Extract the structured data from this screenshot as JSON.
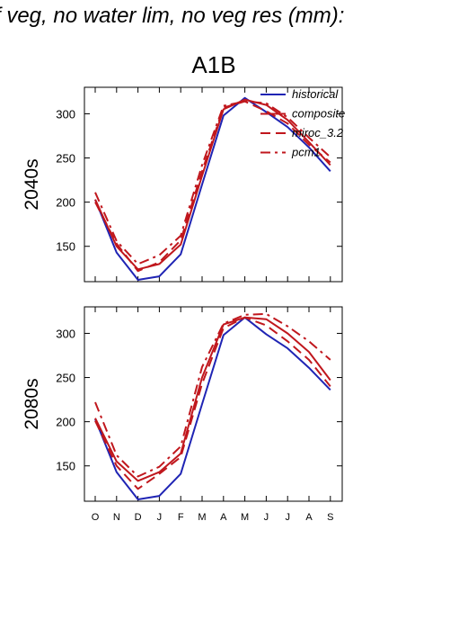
{
  "page_title": "f veg, no water lim, no veg res (mm):",
  "colors": {
    "historical": "#1f24b4",
    "model": "#c0171d",
    "axis": "#000000"
  },
  "chart_data": {
    "type": "line",
    "title": "A1B",
    "x": [
      "O",
      "N",
      "D",
      "J",
      "F",
      "M",
      "A",
      "M",
      "J",
      "J",
      "A",
      "S"
    ],
    "ylim": [
      110,
      330
    ],
    "yticks": [
      150,
      200,
      250,
      300
    ],
    "legend": {
      "placement": "top-right",
      "entries": [
        "historical",
        "composite",
        "miroc_3.2",
        "pcm1"
      ]
    },
    "panels": [
      {
        "row_label": "2040s",
        "series": [
          {
            "name": "historical",
            "style": "solid",
            "values": [
              203,
              143,
              112,
              116,
              141,
              220,
              298,
              318,
              302,
              285,
              262,
              235
            ]
          },
          {
            "name": "composite",
            "style": "solid",
            "values": [
              203,
              150,
              124,
              130,
              152,
              230,
              305,
              316,
              310,
              293,
              268,
              242
            ]
          },
          {
            "name": "miroc_3.2",
            "style": "dashed",
            "values": [
              200,
              153,
              122,
              132,
              157,
              235,
              307,
              314,
              303,
              289,
              265,
              245
            ]
          },
          {
            "name": "pcm1",
            "style": "dashdot",
            "values": [
              211,
              156,
              130,
              140,
              162,
              242,
              309,
              314,
              312,
              296,
              273,
              251
            ]
          }
        ]
      },
      {
        "row_label": "2080s",
        "series": [
          {
            "name": "historical",
            "style": "solid",
            "values": [
              203,
              143,
              112,
              116,
              141,
              220,
              298,
              318,
              299,
              283,
              261,
              236
            ]
          },
          {
            "name": "composite",
            "style": "solid",
            "values": [
              204,
              155,
              133,
              143,
              164,
              250,
              310,
              318,
              316,
              300,
              279,
              247
            ]
          },
          {
            "name": "miroc_3.2",
            "style": "dashed",
            "values": [
              201,
              150,
              124,
              141,
              160,
              243,
              306,
              318,
              309,
              291,
              270,
              240
            ]
          },
          {
            "name": "pcm1",
            "style": "dashdot",
            "values": [
              222,
              162,
              138,
              149,
              172,
              262,
              311,
              321,
              322,
              308,
              291,
              270
            ]
          }
        ]
      }
    ]
  }
}
